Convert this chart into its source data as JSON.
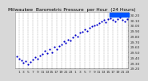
{
  "title": "Milwaukee  Barometric Pressure  per Hour  (24 Hours)",
  "bg_color": "#d8d8d8",
  "plot_bg_color": "#ffffff",
  "dot_color": "#0000cc",
  "highlight_color": "#0055ff",
  "grid_color": "#999999",
  "tick_color": "#333333",
  "hours": [
    0,
    1,
    2,
    3,
    4,
    5,
    6,
    7,
    8,
    9,
    10,
    11,
    12,
    13,
    14,
    15,
    16,
    17,
    18,
    19,
    20,
    21,
    22,
    23,
    24,
    25,
    26,
    27,
    28,
    29,
    30,
    31,
    32,
    33,
    34,
    35,
    36,
    37,
    38,
    39,
    40,
    41,
    42,
    43,
    44,
    45,
    46,
    47
  ],
  "pressure": [
    29.42,
    29.38,
    29.35,
    29.3,
    29.33,
    29.28,
    29.32,
    29.36,
    29.4,
    29.38,
    29.44,
    29.46,
    29.52,
    29.48,
    29.55,
    29.5,
    29.6,
    29.56,
    29.62,
    29.65,
    29.7,
    29.68,
    29.74,
    29.72,
    29.78,
    29.82,
    29.8,
    29.86,
    29.88,
    29.92,
    29.9,
    29.95,
    29.98,
    30.0,
    30.02,
    30.05,
    30.08,
    30.1,
    30.06,
    30.12,
    30.14,
    30.1,
    30.08,
    30.12,
    30.15,
    30.1,
    30.08,
    30.12
  ],
  "ylim_min": 29.2,
  "ylim_max": 30.25,
  "yticks": [
    29.2,
    29.3,
    29.4,
    29.5,
    29.6,
    29.7,
    29.8,
    29.9,
    30.0,
    30.1,
    30.2
  ],
  "ytick_labels": [
    "29.20",
    "29.30",
    "29.40",
    "29.50",
    "29.60",
    "29.70",
    "29.80",
    "29.90",
    "30.00",
    "30.10",
    "30.20"
  ],
  "xtick_positions": [
    1,
    3,
    5,
    7,
    9,
    11,
    13,
    15,
    17,
    19,
    21,
    23,
    25,
    27,
    29,
    31,
    33,
    35,
    37,
    39,
    41,
    43,
    45,
    47
  ],
  "xtick_labels": [
    "1",
    "3",
    "5",
    "7",
    "9",
    "11",
    "13",
    "15",
    "17",
    "19",
    "21",
    "23",
    "1",
    "3",
    "5",
    "7",
    "9",
    "11",
    "13",
    "15",
    "17",
    "19",
    "21",
    "23"
  ],
  "grid_positions": [
    1,
    3,
    5,
    7,
    9,
    11,
    13,
    15,
    17,
    19,
    21,
    23,
    25,
    27,
    29,
    31,
    33,
    35,
    37,
    39,
    41,
    43,
    45,
    47
  ],
  "highlight_x1": 38,
  "highlight_x2": 47,
  "highlight_y": 30.22,
  "title_fontsize": 4.2,
  "tick_fontsize": 3.2,
  "dot_size": 2.5
}
